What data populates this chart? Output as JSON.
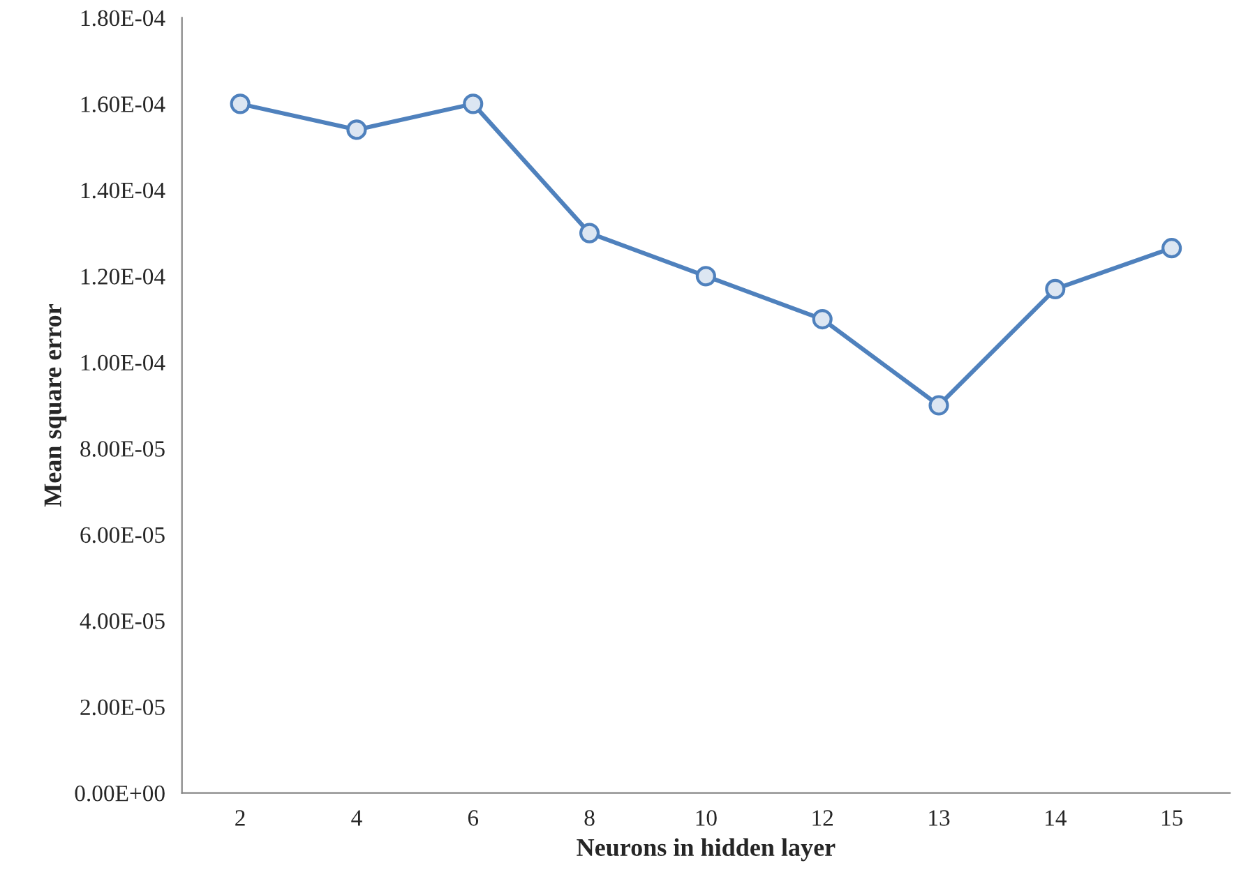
{
  "chart_data": {
    "type": "line",
    "xlabel": "Neurons in hidden layer",
    "ylabel": "Mean square error",
    "categories": [
      "2",
      "4",
      "6",
      "8",
      "10",
      "12",
      "13",
      "14",
      "15"
    ],
    "series": [
      {
        "color": "#4f81bd",
        "values": [
          0.00016,
          0.000154,
          0.00016,
          0.00013,
          0.00012,
          0.00011,
          9e-05,
          0.000117,
          0.0001265
        ]
      }
    ],
    "ylim": [
      0,
      0.00018
    ],
    "yticks": [
      {
        "value": 0,
        "label": "0.00E+00"
      },
      {
        "value": 2e-05,
        "label": "2.00E-05"
      },
      {
        "value": 4e-05,
        "label": "4.00E-05"
      },
      {
        "value": 6e-05,
        "label": "6.00E-05"
      },
      {
        "value": 8e-05,
        "label": "8.00E-05"
      },
      {
        "value": 0.0001,
        "label": "1.00E-04"
      },
      {
        "value": 0.00012,
        "label": "1.20E-04"
      },
      {
        "value": 0.00014,
        "label": "1.40E-04"
      },
      {
        "value": 0.00016,
        "label": "1.60E-04"
      },
      {
        "value": 0.00018,
        "label": "1.80E-04"
      }
    ],
    "grid": false,
    "legend": false,
    "marker": "circle",
    "line_style": "solid"
  }
}
